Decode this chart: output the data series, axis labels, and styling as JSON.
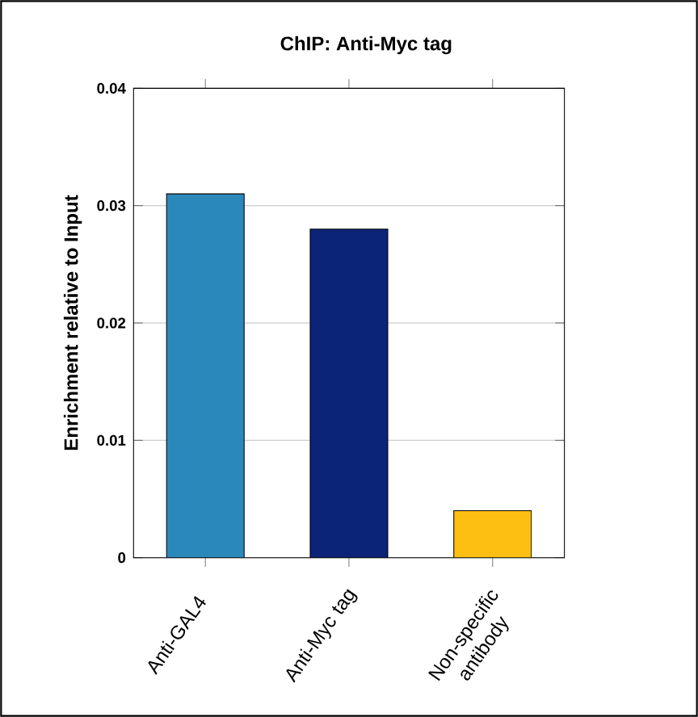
{
  "chart_data": {
    "type": "bar",
    "title": "ChIP: Anti-Myc tag",
    "ylabel": "Enrichment relative to Input",
    "categories": [
      "Anti-GAL4",
      "Anti-Myc tag",
      "Non-specific antibody"
    ],
    "values": [
      0.031,
      0.028,
      0.004
    ],
    "colors": [
      "#2b88bb",
      "#0b2477",
      "#fdbf12"
    ],
    "ylim": [
      0,
      0.04
    ],
    "yticks": [
      0,
      0.01,
      0.02,
      0.03,
      0.04
    ],
    "grid": "y"
  }
}
